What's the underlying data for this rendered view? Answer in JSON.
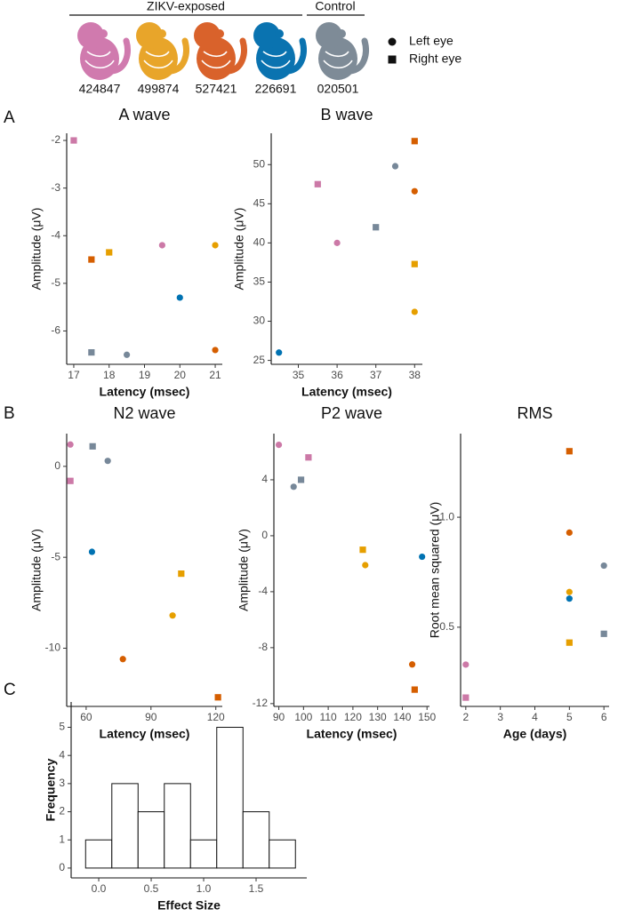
{
  "header": {
    "groups": [
      "ZIKV-exposed",
      "Control"
    ],
    "animals": [
      {
        "id": "424847",
        "color": "#d07aae"
      },
      {
        "id": "499874",
        "color": "#e8a52a"
      },
      {
        "id": "527421",
        "color": "#d9622b"
      },
      {
        "id": "226691",
        "color": "#0a73b0"
      },
      {
        "id": "020501",
        "color": "#7e8b97"
      }
    ],
    "eye_legend": [
      {
        "label": "Left eye",
        "marker": "circle"
      },
      {
        "label": "Right eye",
        "marker": "square"
      }
    ]
  },
  "panel_labels": [
    "A",
    "B",
    "C"
  ],
  "chart_data": [
    {
      "type": "scatter",
      "title": "A wave",
      "xlabel": "Latency (msec)",
      "ylabel": "Amplitude (μV)",
      "x": [
        17,
        17.5,
        18,
        19.5,
        21,
        20,
        21,
        17.5,
        18.5
      ],
      "values": [
        -2.0,
        -4.5,
        -4.35,
        -4.2,
        -4.2,
        -5.3,
        -6.4,
        -6.45,
        -6.5
      ],
      "colors": [
        "#cc79a7",
        "#d55e00",
        "#e69f00",
        "#cc79a7",
        "#e69f00",
        "#0072b2",
        "#d55e00",
        "#778899",
        "#778899"
      ],
      "markers": [
        "square",
        "square",
        "square",
        "circle",
        "circle",
        "circle",
        "circle",
        "square",
        "circle"
      ],
      "xlim": [
        16.8,
        21.2
      ],
      "xticks": [
        17,
        18,
        19,
        20,
        21
      ],
      "ylim": [
        -6.7,
        -1.85
      ],
      "yticks": [
        -6,
        -5,
        -4,
        -3,
        -2
      ]
    },
    {
      "type": "scatter",
      "title": "B wave",
      "xlabel": "Latency (msec)",
      "ylabel": "Amplitude (μV)",
      "x": [
        34.5,
        35.5,
        36,
        37,
        37.5,
        38,
        38,
        38,
        38
      ],
      "values": [
        26,
        47.5,
        40,
        42,
        49.8,
        53,
        46.6,
        37.3,
        31.2
      ],
      "colors": [
        "#0072b2",
        "#cc79a7",
        "#cc79a7",
        "#778899",
        "#778899",
        "#d55e00",
        "#d55e00",
        "#e69f00",
        "#e69f00"
      ],
      "markers": [
        "circle",
        "square",
        "circle",
        "square",
        "circle",
        "square",
        "circle",
        "square",
        "circle"
      ],
      "xlim": [
        34.3,
        38.2
      ],
      "xticks": [
        35,
        36,
        37,
        38
      ],
      "ylim": [
        24.5,
        54
      ],
      "yticks": [
        25,
        30,
        35,
        40,
        45,
        50
      ]
    },
    {
      "type": "scatter",
      "title": "N2 wave",
      "xlabel": "Latency (msec)",
      "ylabel": "Amplitude (μV)",
      "x": [
        52.7,
        52.7,
        63,
        70,
        62.7,
        104,
        100,
        77,
        121
      ],
      "values": [
        1.2,
        -0.8,
        1.1,
        0.3,
        -4.7,
        -5.9,
        -8.2,
        -10.6,
        -12.7
      ],
      "colors": [
        "#cc79a7",
        "#cc79a7",
        "#778899",
        "#778899",
        "#0072b2",
        "#e69f00",
        "#e69f00",
        "#d55e00",
        "#d55e00"
      ],
      "markers": [
        "circle",
        "square",
        "square",
        "circle",
        "circle",
        "square",
        "circle",
        "circle",
        "square"
      ],
      "xlim": [
        51,
        123
      ],
      "xticks": [
        60,
        90,
        120
      ],
      "ylim": [
        -13.2,
        1.8
      ],
      "yticks": [
        -10,
        -5,
        0
      ]
    },
    {
      "type": "scatter",
      "title": "P2 wave",
      "xlabel": "Latency (msec)",
      "ylabel": "Amplitude (μV)",
      "x": [
        90,
        102,
        96,
        99,
        124,
        125,
        148,
        144,
        145
      ],
      "values": [
        6.5,
        5.6,
        3.5,
        4.0,
        -1.0,
        -2.1,
        -1.5,
        -9.2,
        -11.0
      ],
      "colors": [
        "#cc79a7",
        "#cc79a7",
        "#778899",
        "#778899",
        "#e69f00",
        "#e69f00",
        "#0072b2",
        "#d55e00",
        "#d55e00"
      ],
      "markers": [
        "circle",
        "square",
        "circle",
        "square",
        "square",
        "circle",
        "circle",
        "circle",
        "square"
      ],
      "xlim": [
        88,
        151
      ],
      "xticks": [
        90,
        100,
        110,
        120,
        130,
        140,
        150
      ],
      "ylim": [
        -12.2,
        7.3
      ],
      "yticks": [
        -12,
        -8,
        -4,
        0,
        4
      ]
    },
    {
      "type": "scatter",
      "title": "RMS",
      "xlabel": "Age (days)",
      "ylabel": "Root mean squared (μV)",
      "x": [
        2,
        2,
        5,
        5,
        5,
        5,
        6,
        6,
        5
      ],
      "values": [
        0.33,
        0.18,
        1.3,
        0.93,
        0.66,
        0.63,
        0.78,
        0.47,
        0.43
      ],
      "colors": [
        "#cc79a7",
        "#cc79a7",
        "#d55e00",
        "#d55e00",
        "#e69f00",
        "#0072b2",
        "#778899",
        "#778899",
        "#e69f00"
      ],
      "markers": [
        "circle",
        "square",
        "square",
        "circle",
        "circle",
        "circle",
        "circle",
        "square",
        "square"
      ],
      "xlim": [
        1.85,
        6.15
      ],
      "xticks": [
        2,
        3,
        4,
        5,
        6
      ],
      "ylim": [
        0.14,
        1.38
      ],
      "yticks": [
        0.5,
        {
          "value": 1,
          "label": "1.0"
        }
      ]
    },
    {
      "type": "histogram",
      "xlabel": "Effect Size",
      "ylabel": "Frequency",
      "bins": [
        -0.125,
        0.125,
        0.375,
        0.625,
        0.875,
        1.125,
        1.375,
        1.625,
        1.875
      ],
      "values": [
        1,
        3,
        2,
        3,
        1,
        5,
        2,
        1
      ],
      "color": "#ffffff",
      "xlim": [
        -0.263,
        1.983
      ],
      "xticks": [
        {
          "value": 0,
          "label": "0.0"
        },
        0.5,
        {
          "value": 1,
          "label": "1.0"
        },
        1.5
      ],
      "ylim": [
        -0.35,
        5.9
      ],
      "yticks": [
        0,
        1,
        2,
        3,
        4,
        5
      ]
    }
  ]
}
